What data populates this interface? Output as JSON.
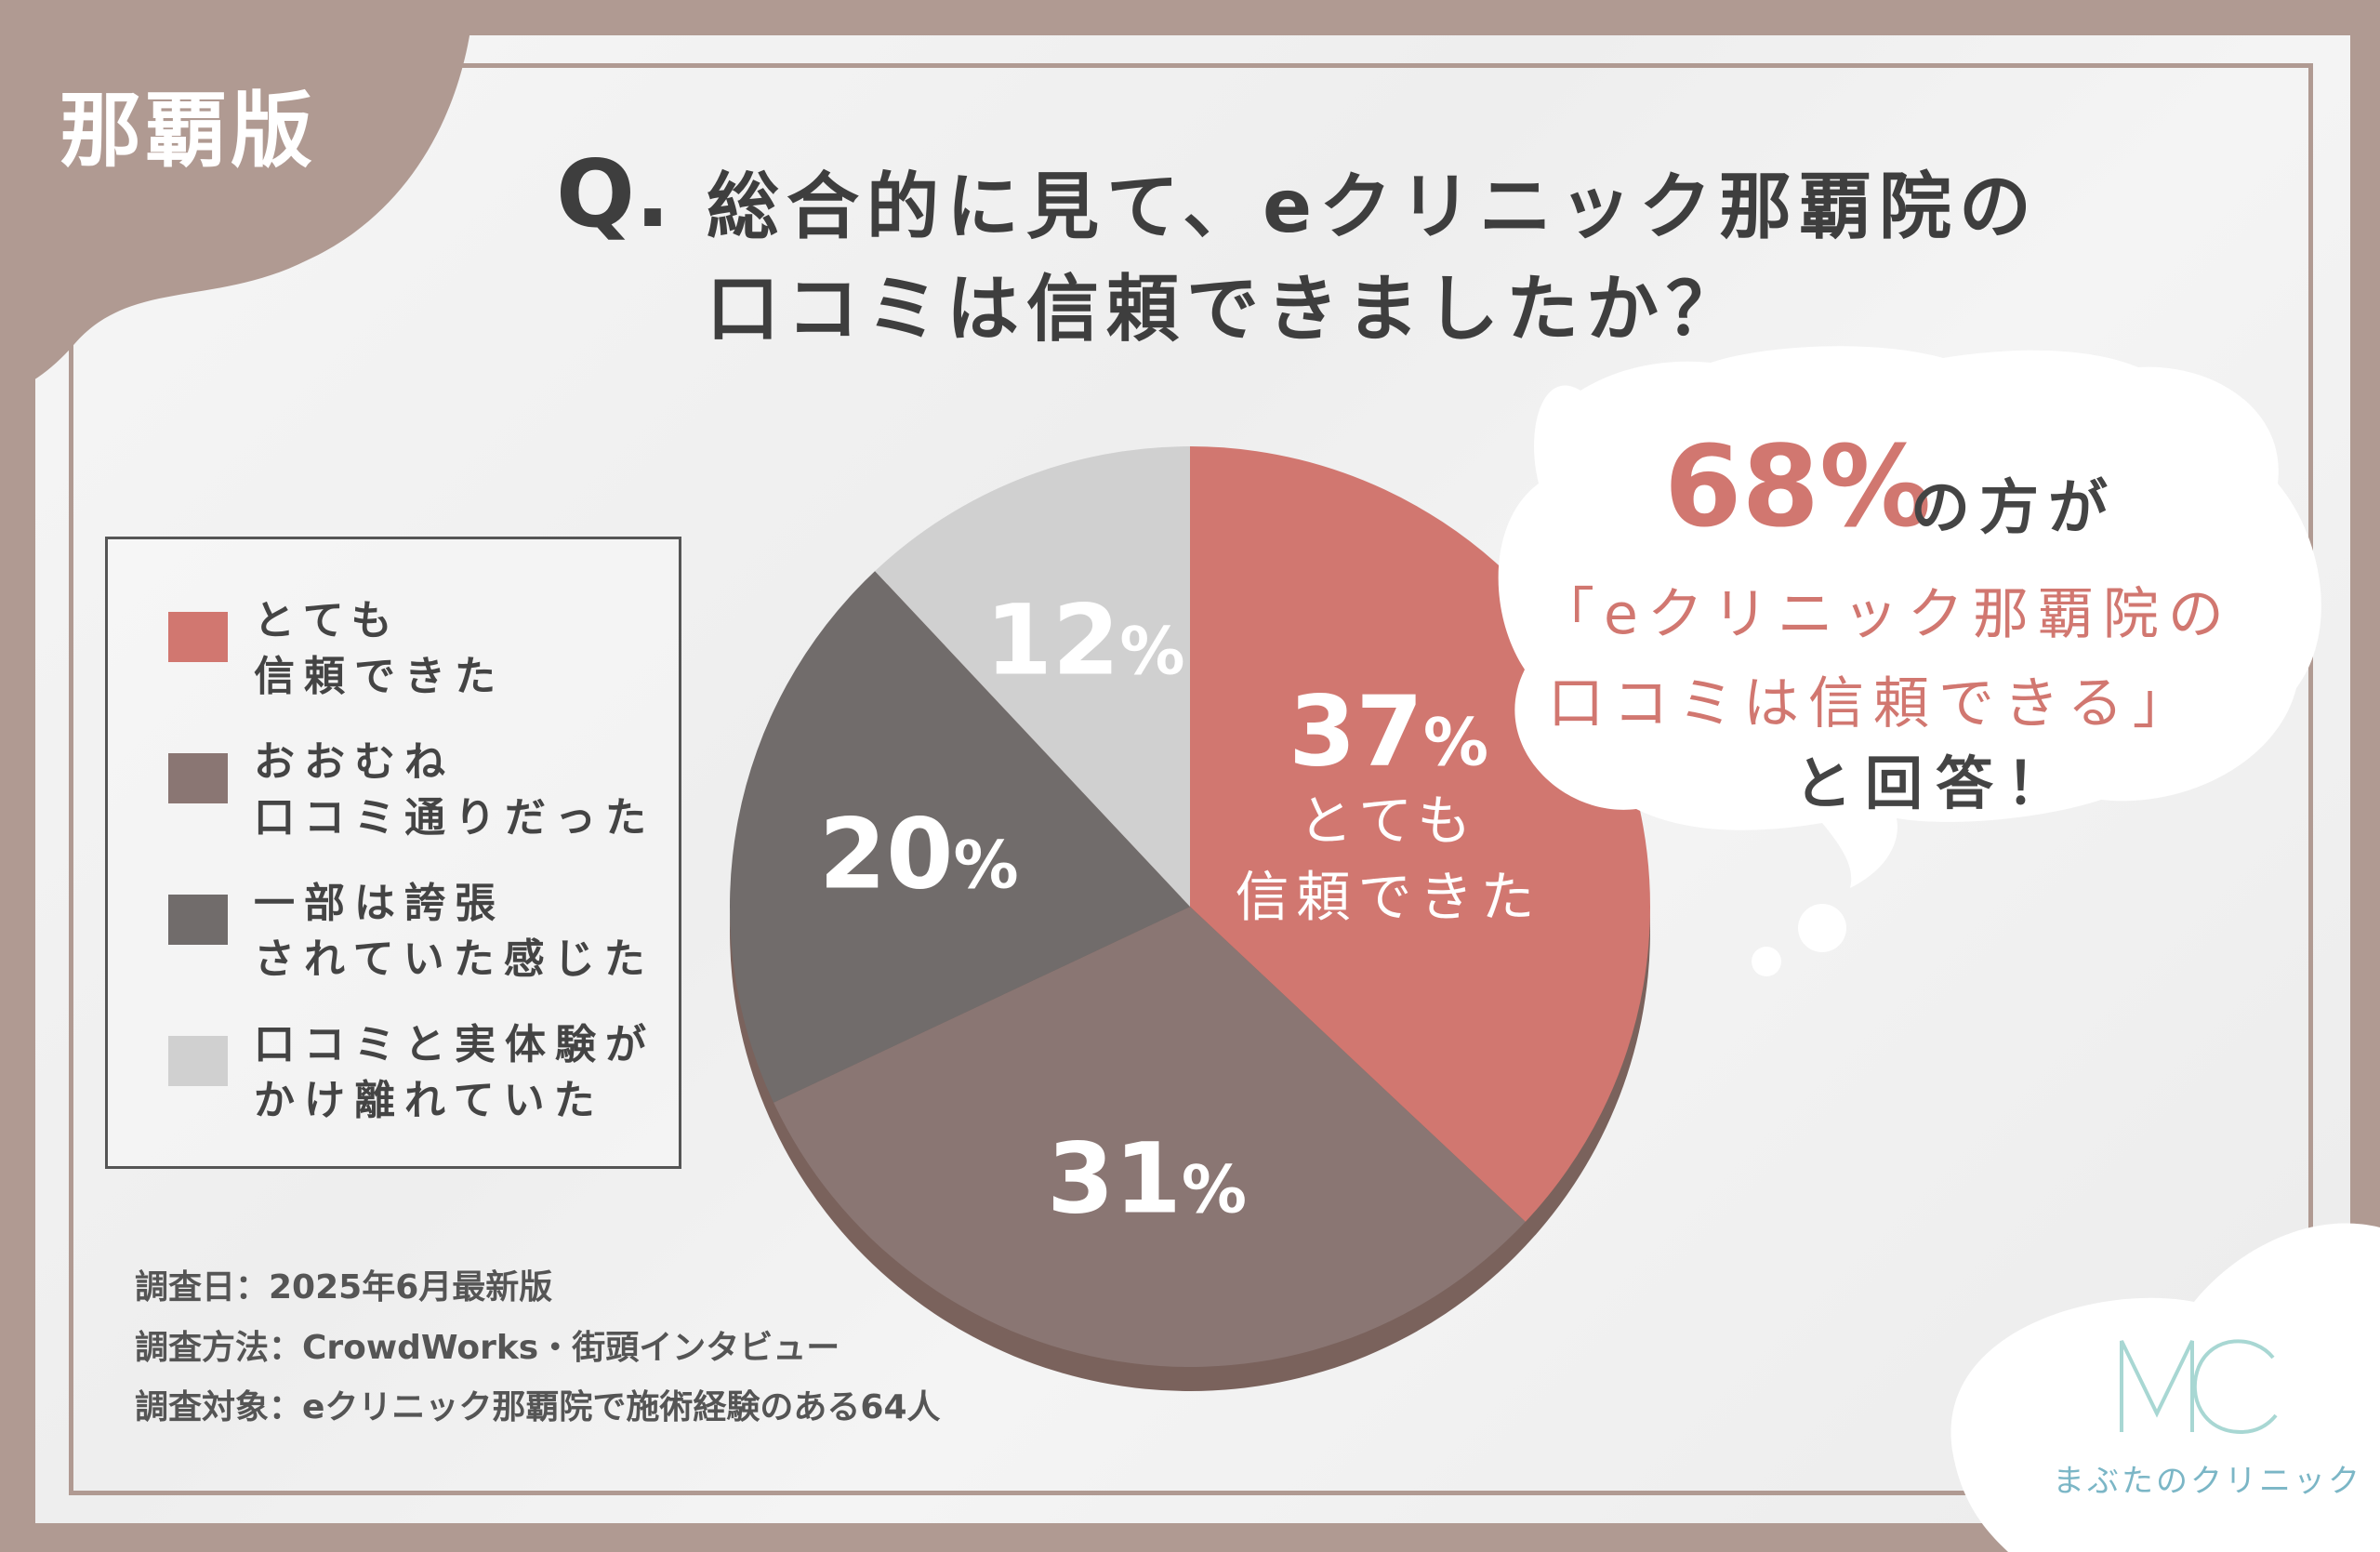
{
  "region_badge": "那覇版",
  "title": {
    "q_mark": "Q.",
    "line1": "総合的に見て、eクリニック那覇院の",
    "line2": "口コミは信頼できましたか？"
  },
  "colors": {
    "frame": "#b09a92",
    "very_trustworthy": "#d17770",
    "mostly_as_reviewed": "#8a7673",
    "partly_exaggerated": "#716c6b",
    "differed": "#d0d0d0",
    "brand": "#7bb6c6"
  },
  "legend": [
    {
      "label": "とても\n信頼できた"
    },
    {
      "label": "おおむね\n口コミ通りだった"
    },
    {
      "label": "一部は誇張\nされていた感じた"
    },
    {
      "label": "口コミと実体験が\nかけ離れていた"
    }
  ],
  "chart_data": {
    "type": "pie",
    "categories": [
      "とても信頼できた",
      "おおむね口コミ通りだった",
      "一部は誇張されていた感じた",
      "口コミと実体験がかけ離れていた"
    ],
    "values": [
      37,
      31,
      20,
      12
    ],
    "unit": "%",
    "slice_labels": [
      {
        "value": "37",
        "unit": "%",
        "caption": "とても\n信頼できた"
      },
      {
        "value": "31",
        "unit": "%",
        "caption": ""
      },
      {
        "value": "20",
        "unit": "%",
        "caption": ""
      },
      {
        "value": "12",
        "unit": "%",
        "caption": ""
      }
    ],
    "legend_position": "left"
  },
  "callout": {
    "percent": "68%",
    "line1": "の方が",
    "line2": "「eクリニック那覇院の",
    "line3": "口コミは信頼できる」",
    "line4": "と回答！"
  },
  "survey": {
    "date": "調査日：2025年6月最新版",
    "method": "調査方法：CrowdWorks・街頭インタビュー",
    "target": "調査対象：eクリニック那覇院で施術経験のある64人"
  },
  "brand": {
    "logo": "MC",
    "name": "まぶたのクリニック"
  }
}
